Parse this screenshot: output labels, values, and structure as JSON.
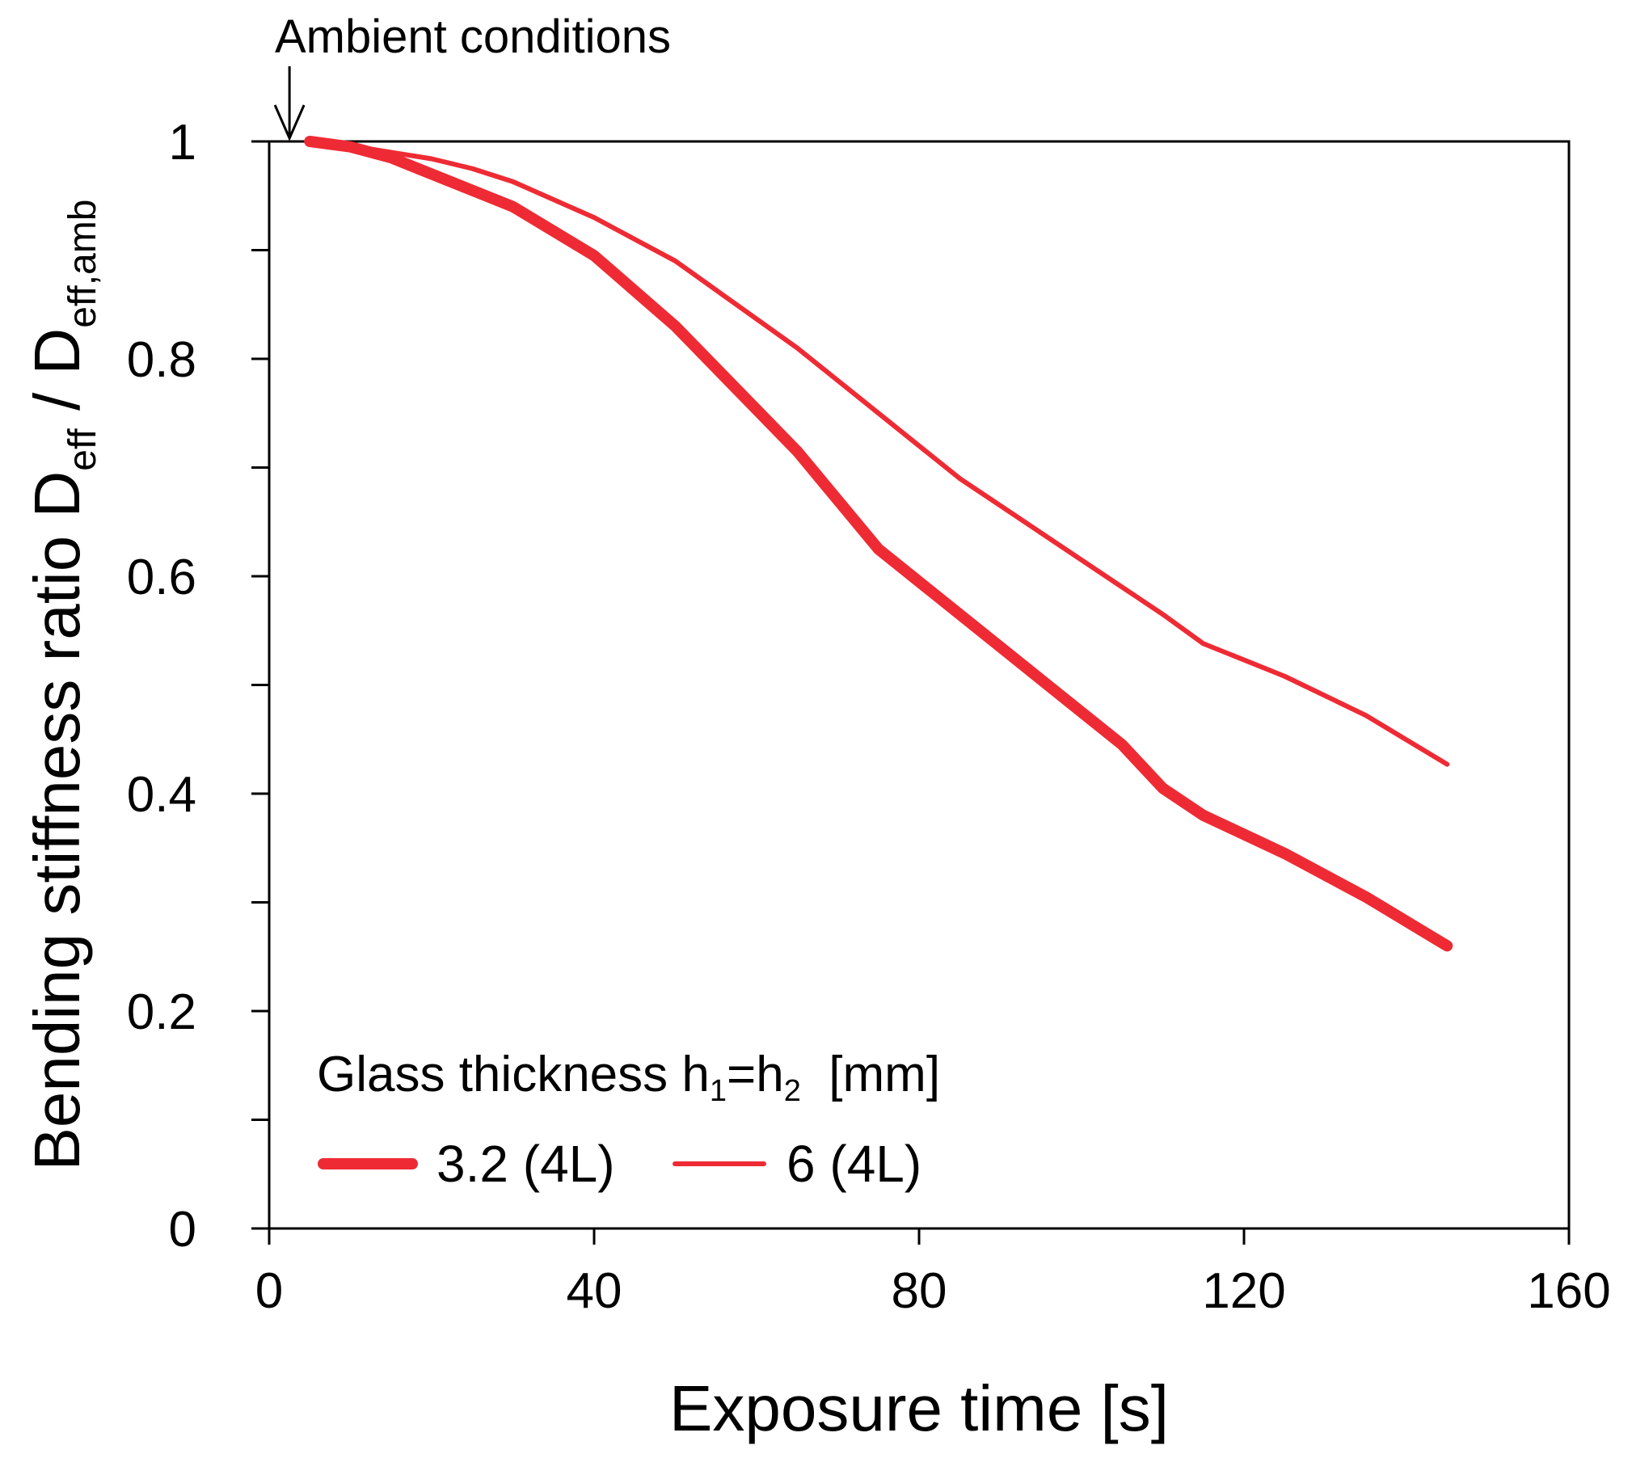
{
  "chart_data": {
    "type": "line",
    "xlabel": "Exposure time  [s]",
    "ylabel": {
      "prefix": "Bending stiffness ratio D",
      "sub1": "eff",
      "middle": " / D",
      "sub2": "eff,amb"
    },
    "xlim": [
      0,
      160
    ],
    "ylim": [
      0,
      1
    ],
    "x_ticks": [
      0,
      40,
      80,
      120,
      160
    ],
    "x_tick_labels": [
      "0",
      "40",
      "80",
      "120",
      "160"
    ],
    "y_ticks": [
      0,
      0.2,
      0.4,
      0.6,
      0.8,
      1
    ],
    "y_tick_labels": [
      "0",
      "0.2",
      "0.4",
      "0.6",
      "0.8",
      "1"
    ],
    "y_minor_ticks": [
      0.1,
      0.3,
      0.5,
      0.7,
      0.9
    ],
    "annotation": {
      "text": "Ambient conditions",
      "x": 2.5,
      "y": 1
    },
    "legend": {
      "title_prefix": "Glass thickness h",
      "title_sub1": "1",
      "title_mid": "=h",
      "title_sub2": "2",
      "title_suffix": "  [mm]",
      "placement": "bottom-left"
    },
    "series": [
      {
        "name": "3.2 (4L)",
        "color": "#ee2b34",
        "weight": "thick",
        "x": [
          5,
          10,
          15,
          20,
          30,
          40,
          50,
          65,
          75,
          85,
          95,
          105,
          110,
          115,
          125,
          135,
          145
        ],
        "y": [
          1.0,
          0.995,
          0.985,
          0.97,
          0.94,
          0.895,
          0.83,
          0.715,
          0.625,
          0.565,
          0.505,
          0.445,
          0.405,
          0.38,
          0.345,
          0.305,
          0.26
        ]
      },
      {
        "name": "6 (4L)",
        "color": "#ee2b34",
        "weight": "thin",
        "x": [
          5,
          10,
          15,
          20,
          25,
          30,
          40,
          50,
          65,
          75,
          85,
          95,
          105,
          110,
          115,
          125,
          135,
          145
        ],
        "y": [
          1.0,
          0.996,
          0.99,
          0.984,
          0.975,
          0.963,
          0.93,
          0.89,
          0.81,
          0.75,
          0.69,
          0.64,
          0.59,
          0.565,
          0.538,
          0.508,
          0.472,
          0.427
        ]
      }
    ]
  }
}
